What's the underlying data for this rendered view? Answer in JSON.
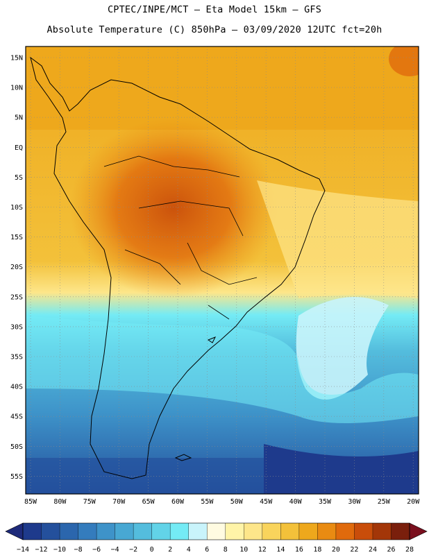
{
  "header": {
    "line1": "CPTEC/INPE/MCT –  Eta Model 15km – GFS",
    "line2": "Absolute Temperature (C) 850hPa – 03/09/2020 12UTC fct=20h"
  },
  "map": {
    "lat_labels": [
      "15N",
      "10N",
      "5N",
      "EQ",
      "5S",
      "10S",
      "15S",
      "20S",
      "25S",
      "30S",
      "35S",
      "40S",
      "45S",
      "50S",
      "55S"
    ],
    "lon_labels": [
      "85W",
      "80W",
      "75W",
      "70W",
      "65W",
      "60W",
      "55W",
      "50W",
      "45W",
      "40W",
      "35W",
      "30W",
      "25W",
      "20W"
    ],
    "grid": "dotted",
    "land_outline_color": "#000000"
  },
  "colorbar": {
    "labels": [
      "−14",
      "−12",
      "−10",
      "−8",
      "−6",
      "−4",
      "−2",
      "0",
      "2",
      "4",
      "6",
      "8",
      "10",
      "12",
      "14",
      "16",
      "18",
      "20",
      "22",
      "24",
      "26",
      "28"
    ],
    "colors": [
      "#1e3a8c",
      "#24509c",
      "#2b66ad",
      "#347cbd",
      "#3e93c9",
      "#48a8d3",
      "#54bddd",
      "#62d3e8",
      "#74ebf5",
      "#c9f4fb",
      "#fffbe1",
      "#fff4a8",
      "#fde68a",
      "#f9d45c",
      "#f3c13a",
      "#eea81c",
      "#e98b12",
      "#e06a0c",
      "#c94d0a",
      "#a33608",
      "#7a1f0c"
    ],
    "under_color": "#1e2a7a",
    "over_color": "#7a0f1e"
  }
}
